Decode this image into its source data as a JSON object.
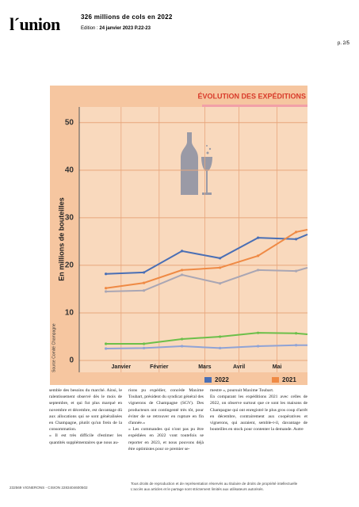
{
  "header": {
    "logo": "l´union",
    "title": "326 millions de cols en 2022",
    "edition_label": "Edition :",
    "edition": "24 janvier 2023 P.22-23",
    "page": "p. 2/5"
  },
  "chart_data": {
    "type": "line",
    "title": "ÉVOLUTION DES EXPÉDITIONS",
    "y_label": "En millions de bouteilles",
    "source": "Source Comité Champagne",
    "x": [
      0,
      1,
      2,
      3,
      4,
      5,
      5.3
    ],
    "xlim": [
      -0.7,
      5.3
    ],
    "xticks": [
      {
        "value": 0.4,
        "label": "Janvier"
      },
      {
        "value": 1.4,
        "label": "Février"
      },
      {
        "value": 2.6,
        "label": "Mars"
      },
      {
        "value": 3.5,
        "label": "Avril"
      },
      {
        "value": 4.5,
        "label": "Mai"
      }
    ],
    "ylim": [
      -2.5,
      53.3
    ],
    "yticks": [
      0,
      10,
      20,
      30,
      40,
      50
    ],
    "grid": true,
    "series": [
      {
        "name": "2022",
        "color": "#4a6fb5",
        "values": [
          18.2,
          18.5,
          23,
          21.5,
          25.8,
          25.5,
          26.5
        ]
      },
      {
        "name": "2021",
        "color": "#ef8a45",
        "values": [
          15.2,
          16.3,
          19,
          19.5,
          22,
          27,
          27.5
        ]
      },
      {
        "color": "#a9a6b4",
        "values": [
          14.5,
          14.7,
          18,
          16.2,
          19,
          18.8,
          19.5
        ]
      },
      {
        "color": "#6cbf4a",
        "values": [
          3.5,
          3.5,
          4.5,
          5,
          5.8,
          5.7,
          5.5
        ]
      },
      {
        "color": "#8fa3d6",
        "values": [
          2.5,
          2.6,
          3,
          2.6,
          3,
          3.2,
          3.2
        ]
      }
    ]
  },
  "article": {
    "columns": [
      [
        "semble des besoins du marché. Ainsi, le ralentissement observé dès le mois de septembre, et qui fut plus marqué en novembre et décembre, est davantage dû aux allocations qui se sont généralisées en Champagne, plutôt qu'un frein de la consommation.",
        "« Il est très difficile d'estimer les quantités supplémentaires que nous au-"
      ],
      [
        "rions pu expédier, concède Maxime Toubart, président du syndicat général des vignerons de Champagne (SGV). Des producteurs ont contingenté très tôt, pour éviter de se retrouver en rupture en fin d'année.»",
        "« Les commandes qui n'ont pas pu être expédiées en 2022 vont toutefois se reporter en 2023, et nous pouvons déjà être optimistes pour ce premier se-"
      ],
      [
        "mestre », poursuit Maxime Toubart.",
        "En comparant les expéditions 2021 avec celles de 2022, on observe surtout que ce sont les maisons de Champagne qui ont enregistré le plus gros coup d'arrêt en décembre, contrairement aux coopératives et vignerons, qui auraient, semble-t-il, davantage de bouteilles en stock pour contenter la demande. Autre"
      ]
    ]
  },
  "footer": {
    "reference": "232569 VIGNERONS - CISION 2283404600502",
    "rights": "Tous droits de reproduction et de représentation réservés au titulaire de droits de propriété intellectuelle",
    "access": "L'accès aux articles et le partage sont strictement limités aux utilisateurs autorisés."
  }
}
